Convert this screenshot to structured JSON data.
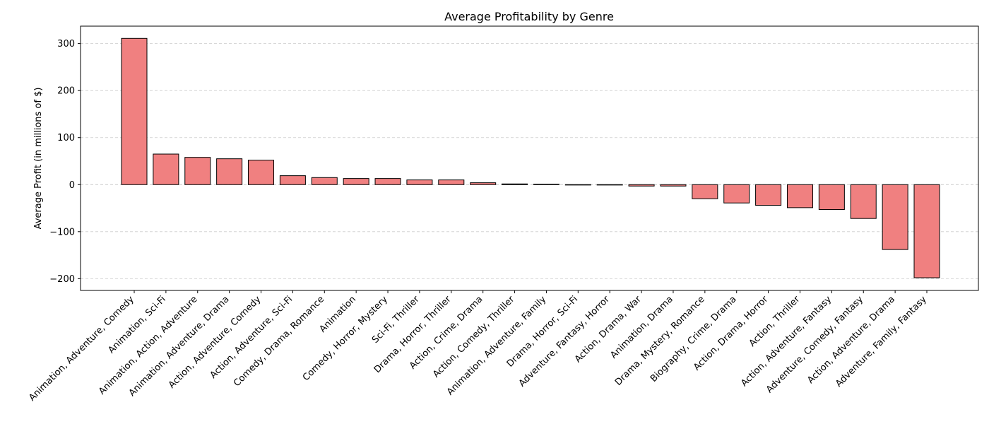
{
  "chart_data": {
    "type": "bar",
    "title": "Average Profitability by Genre",
    "xlabel": "",
    "ylabel": "Average Profit (in millions of $)",
    "ylim": [
      -225,
      337
    ],
    "yticks": [
      -200,
      -100,
      0,
      100,
      200,
      300
    ],
    "grid": true,
    "bar_color": "#f08080",
    "edge_color": "#000000",
    "categories": [
      "Animation, Adventure, Comedy",
      "Animation, Sci-Fi",
      "Animation, Action, Adventure",
      "Animation, Adventure, Drama",
      "Action, Adventure, Comedy",
      "Action, Adventure, Sci-Fi",
      "Comedy, Drama, Romance",
      "Animation",
      "Comedy, Horror, Mystery",
      "Sci-Fi, Thriller",
      "Drama, Horror, Thriller",
      "Action, Crime, Drama",
      "Action, Comedy, Thriller",
      "Animation, Adventure, Family",
      "Drama, Horror, Sci-Fi",
      "Adventure, Fantasy, Horror",
      "Action, Drama, War",
      "Animation, Drama",
      "Drama, Mystery, Romance",
      "Biography, Crime, Drama",
      "Action, Drama, Horror",
      "Action, Thriller",
      "Action, Adventure, Fantasy",
      "Adventure, Comedy, Fantasy",
      "Action, Adventure, Drama",
      "Adventure, Family, Fantasy"
    ],
    "values": [
      311,
      65,
      58,
      55,
      52,
      19,
      15,
      13,
      13,
      10,
      10,
      4,
      1.5,
      1,
      -0.5,
      -0.8,
      -3,
      -3,
      -30,
      -39,
      -44,
      -49,
      -53,
      -72,
      -138,
      -198
    ]
  }
}
